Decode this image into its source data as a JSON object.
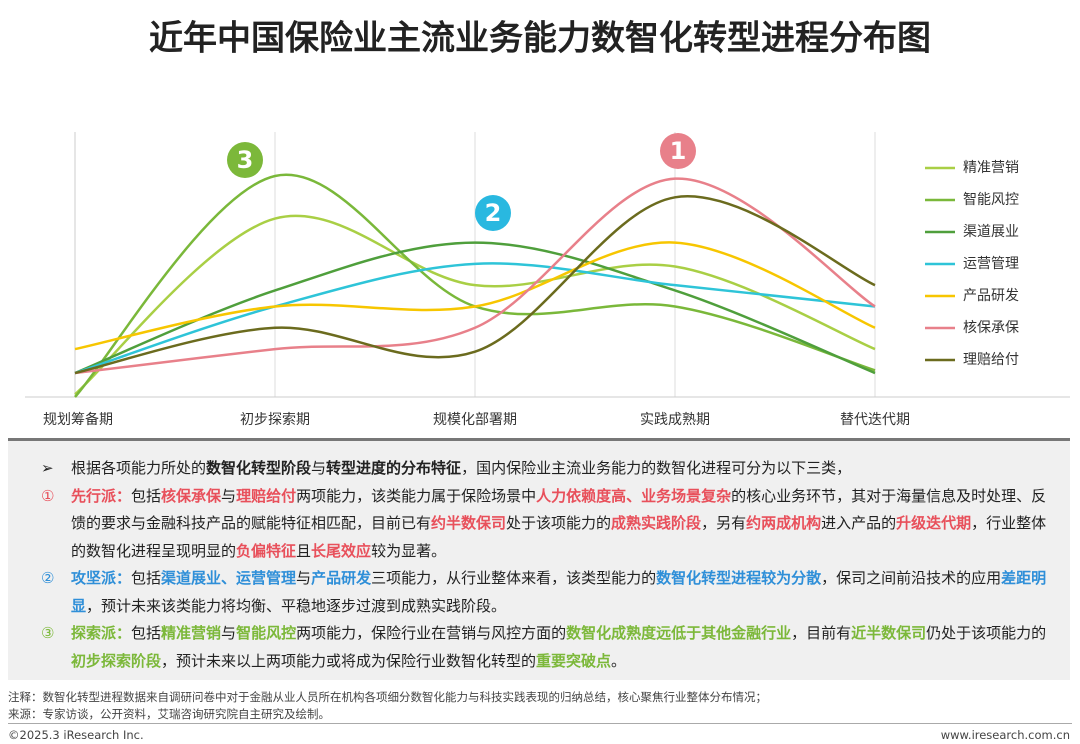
{
  "chart_data": {
    "type": "line",
    "title": "近年中国保险业主流业务能力数智化转型进程分布图",
    "categories": [
      "规划筹备期",
      "初步探索期",
      "规模化部署期",
      "实践成熟期",
      "替代迭代期"
    ],
    "series": [
      {
        "name": "精准营销",
        "color": "#a9cf45",
        "values": [
          1,
          67,
          42,
          49,
          18
        ]
      },
      {
        "name": "智能风控",
        "color": "#7ab83a",
        "values": [
          0,
          83,
          34,
          34,
          10
        ]
      },
      {
        "name": "渠道展业",
        "color": "#4f9f3c",
        "values": [
          9,
          40,
          58,
          40,
          9
        ]
      },
      {
        "name": "运营管理",
        "color": "#2ec4d8",
        "values": [
          9,
          34,
          50,
          42,
          34
        ]
      },
      {
        "name": "产品研发",
        "color": "#f7c600",
        "values": [
          18,
          34,
          34,
          58,
          26
        ]
      },
      {
        "name": "核保承保",
        "color": "#e8808a",
        "values": [
          9,
          18,
          26,
          82,
          34
        ]
      },
      {
        "name": "理赔给付",
        "color": "#6b6b1e",
        "values": [
          9,
          26,
          17,
          75,
          42
        ]
      }
    ],
    "annotations": [
      {
        "text": "3",
        "color": "#7cb83a"
      },
      {
        "text": "2",
        "color": "#29b8e0"
      },
      {
        "text": "1",
        "color": "#e8808a"
      }
    ],
    "smooth": true
  },
  "notes": {
    "paras": [
      {
        "marker": "➢",
        "color": "#222",
        "runs": [
          {
            "t": "根据各项能力所处的"
          },
          {
            "t": "数智化转型阶段",
            "hl": true
          },
          {
            "t": "与"
          },
          {
            "t": "转型进度的分布特征",
            "hl": true
          },
          {
            "t": "，国内保险业主流业务能力的数智化进程可分为以下三类，"
          }
        ]
      },
      {
        "marker": "①",
        "color": "#e8505b",
        "runs": [
          {
            "t": "先行派：",
            "hl": true
          },
          {
            "t": "包括"
          },
          {
            "t": "核保承保",
            "hl": true
          },
          {
            "t": "与"
          },
          {
            "t": "理赔给付",
            "hl": true
          },
          {
            "t": "两项能力，该类能力属于保险场景中"
          },
          {
            "t": "人力依赖度高、业务场景复杂",
            "hl": true
          },
          {
            "t": "的核心业务环节，其对于海量信息及时处理、反馈的要求与金融科技产品的赋能特征相匹配，目前已有"
          },
          {
            "t": "约半数保司",
            "hl": true
          },
          {
            "t": "处于该项能力的"
          },
          {
            "t": "成熟实践阶段",
            "hl": true
          },
          {
            "t": "，另有"
          },
          {
            "t": "约两成机构",
            "hl": true
          },
          {
            "t": "进入产品的"
          },
          {
            "t": "升级迭代期",
            "hl": true
          },
          {
            "t": "，行业整体的数智化进程呈现明显的"
          },
          {
            "t": "负偏特征",
            "hl": true
          },
          {
            "t": "且"
          },
          {
            "t": "长尾效应",
            "hl": true
          },
          {
            "t": "较为显著。"
          }
        ]
      },
      {
        "marker": "②",
        "color": "#2f8fd8",
        "runs": [
          {
            "t": "攻坚派：",
            "hl": true
          },
          {
            "t": "包括"
          },
          {
            "t": "渠道展业、运营管理",
            "hl": true
          },
          {
            "t": "与"
          },
          {
            "t": "产品研发",
            "hl": true
          },
          {
            "t": "三项能力，从行业整体来看，该类型能力的"
          },
          {
            "t": "数智化转型进程较为分散",
            "hl": true
          },
          {
            "t": "，保司之间前沿技术的应用"
          },
          {
            "t": "差距明显",
            "hl": true
          },
          {
            "t": "，预计未来该类能力将均衡、平稳地逐步过渡到成熟实践阶段。"
          }
        ]
      },
      {
        "marker": "③",
        "color": "#7cb83a",
        "runs": [
          {
            "t": "探索派：",
            "hl": true
          },
          {
            "t": "包括"
          },
          {
            "t": "精准营销",
            "hl": true
          },
          {
            "t": "与"
          },
          {
            "t": "智能风控",
            "hl": true
          },
          {
            "t": "两项能力，保险行业在营销与风控方面的"
          },
          {
            "t": "数智化成熟度远低于其他金融行业",
            "hl": true
          },
          {
            "t": "，目前有"
          },
          {
            "t": "近半数保司",
            "hl": true
          },
          {
            "t": "仍处于该项能力的"
          },
          {
            "t": "初步探索阶段",
            "hl": true
          },
          {
            "t": "，预计未来以上两项能力或将成为保险行业数智化转型的"
          },
          {
            "t": "重要突破点",
            "hl": true
          },
          {
            "t": "。"
          }
        ]
      }
    ]
  },
  "footer": {
    "note": "注释：数智化转型进程数据来自调研问卷中对于金融从业人员所在机构各项细分数智化能力与科技实践表现的归纳总结，核心聚焦行业整体分布情况；",
    "source": "来源：专家访谈，公开资料，艾瑞咨询研究院自主研究及绘制。",
    "copyright": "©2025.3 iResearch Inc.",
    "url": "www.iresearch.com.cn"
  }
}
